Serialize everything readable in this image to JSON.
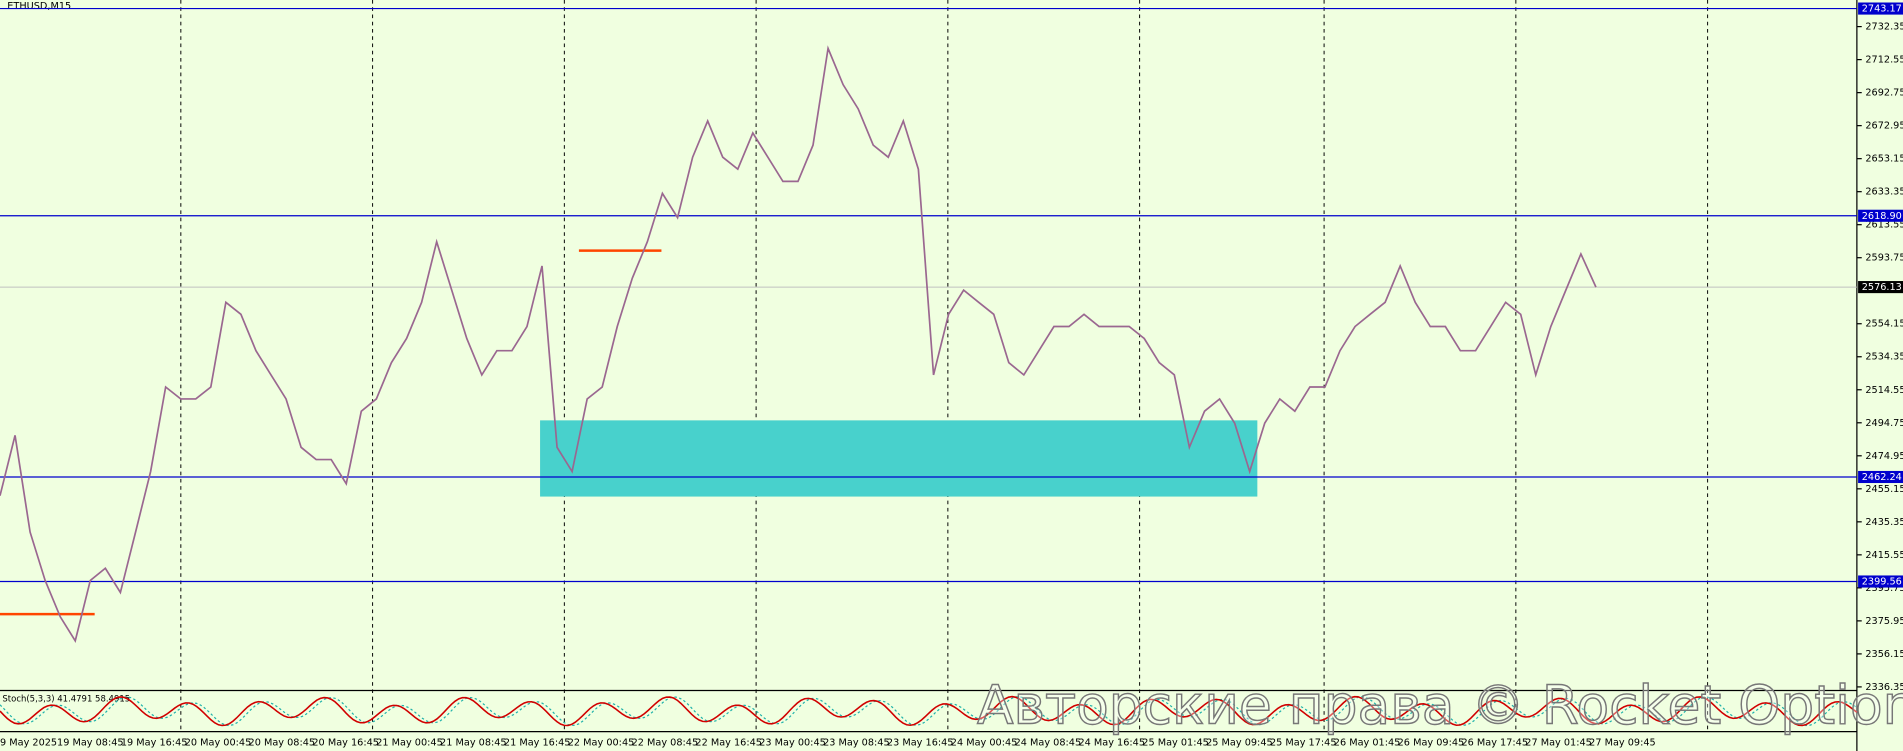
{
  "chart_data": {
    "type": "line",
    "title": "ETHUSD,M15",
    "color": "#9a6790",
    "values": [
      2451.0,
      2487.2,
      2429.2,
      2400.2,
      2378.5,
      2364.0,
      2400.2,
      2407.5,
      2393.0,
      2429.2,
      2465.5,
      2516.2,
      2509.0,
      2509.0,
      2516.2,
      2567.0,
      2559.8,
      2538.0,
      2523.5,
      2509.0,
      2480.0,
      2472.7,
      2472.7,
      2458.2,
      2501.7,
      2509.0,
      2530.8,
      2545.3,
      2567.0,
      2603.3,
      2574.3,
      2545.3,
      2523.5,
      2538.0,
      2538.0,
      2552.5,
      2588.8,
      2480.0,
      2465.5,
      2509.0,
      2516.2,
      2552.5,
      2581.5,
      2603.3,
      2632.3,
      2617.8,
      2654.0,
      2675.8,
      2654.0,
      2646.8,
      2668.5,
      2654.0,
      2639.5,
      2639.5,
      2661.3,
      2719.3,
      2697.5,
      2683.0,
      2661.3,
      2654.0,
      2675.8,
      2646.8,
      2523.5,
      2559.8,
      2574.3,
      2567.0,
      2559.8,
      2530.8,
      2523.5,
      2538.0,
      2552.5,
      2552.5,
      2559.8,
      2552.5,
      2552.5,
      2552.5,
      2545.3,
      2530.8,
      2523.5,
      2480.0,
      2501.7,
      2509.0,
      2494.5,
      2465.5,
      2494.5,
      2509.0,
      2501.7,
      2516.2,
      2516.2,
      2538.0,
      2552.5,
      2559.8,
      2567.0,
      2588.8,
      2567.0,
      2552.5,
      2552.5,
      2538.0,
      2538.0,
      2552.5,
      2567.0,
      2559.8,
      2523.5,
      2552.5,
      2574.3,
      2596.0,
      2576.1
    ],
    "ylim": [
      2334.9,
      2748.3
    ],
    "yticks": [
      2336.35,
      2356.15,
      2375.95,
      2395.75,
      2415.55,
      2435.35,
      2455.15,
      2474.95,
      2494.75,
      2514.55,
      2534.35,
      2554.15,
      2593.75,
      2613.55,
      2633.35,
      2653.15,
      2672.95,
      2692.75,
      2712.55,
      2732.35
    ],
    "time_labels": [
      "9 May 2025",
      "19 May 08:45",
      "19 May 16:45",
      "20 May 00:45",
      "20 May 08:45",
      "20 May 16:45",
      "21 May 00:45",
      "21 May 08:45",
      "21 May 16:45",
      "22 May 00:45",
      "22 May 08:45",
      "22 May 16:45",
      "23 May 00:45",
      "23 May 08:45",
      "23 May 16:45",
      "24 May 00:45",
      "24 May 08:45",
      "24 May 16:45",
      "25 May 01:45",
      "25 May 09:45",
      "25 May 17:45",
      "26 May 01:45",
      "26 May 09:45",
      "26 May 17:45",
      "27 May 01:45",
      "27 May 09:45"
    ],
    "levels": [
      2743.17,
      2618.9,
      2462.24,
      2399.56
    ],
    "level_labels": [
      "2743.17",
      "2618.90",
      "2462.24",
      "2399.56"
    ],
    "current_price": 2576.13,
    "zone": [
      2450.5,
      2496.2
    ],
    "support_lines": [
      2380,
      2598
    ],
    "indicator": "Stoch(5,3,3) 41.4791 58.4915",
    "watermark": "Авторские права © Rocket Option"
  }
}
